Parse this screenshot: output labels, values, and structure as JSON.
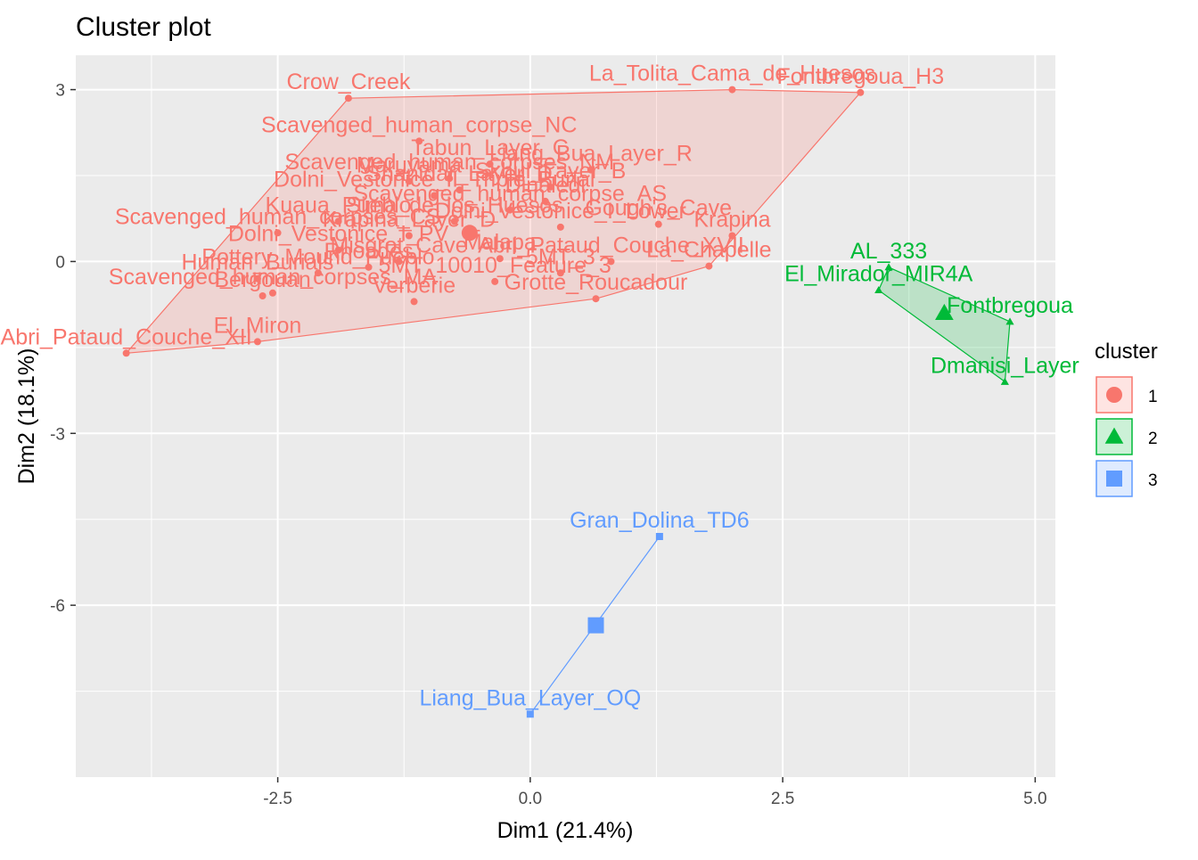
{
  "chart_data": {
    "type": "scatter",
    "title": "Cluster plot",
    "xlabel": "Dim1 (21.4%)",
    "ylabel": "Dim2 (18.1%)",
    "xlim": [
      -4.5,
      5.2
    ],
    "ylim": [
      -9.0,
      3.6
    ],
    "xticks": [
      -2.5,
      0.0,
      2.5,
      5.0
    ],
    "xtick_labels": [
      "-2.5",
      "0.0",
      "2.5",
      "5.0"
    ],
    "yticks": [
      3,
      0,
      -3,
      -6
    ],
    "ytick_labels": [
      "3",
      "0",
      "-3",
      "-6"
    ],
    "grid": true,
    "legend": {
      "title": "cluster",
      "position": "right",
      "entries": [
        {
          "label": "1",
          "shape": "circle",
          "color": "#F8766D"
        },
        {
          "label": "2",
          "shape": "triangle",
          "color": "#00BA38"
        },
        {
          "label": "3",
          "shape": "square",
          "color": "#619CFF"
        }
      ]
    },
    "colors": {
      "panel": "#EBEBEB",
      "grid": "#FFFFFF",
      "cluster1": "#F8766D",
      "cluster2": "#00BA38",
      "cluster3": "#619CFF"
    },
    "series": [
      {
        "name": "1",
        "shape": "circle",
        "color": "#F8766D",
        "fill": "#F8766D",
        "hull": [
          [
            -4.0,
            -1.6
          ],
          [
            -2.7,
            -1.4
          ],
          [
            0.65,
            -0.65
          ],
          [
            1.77,
            -0.08
          ],
          [
            3.27,
            2.95
          ],
          [
            2.0,
            3.0
          ],
          [
            -1.8,
            2.85
          ]
        ],
        "centroid": [
          -0.6,
          0.5
        ],
        "points": [
          {
            "x": -1.8,
            "y": 2.85,
            "label": "Crow_Creek"
          },
          {
            "x": 2.0,
            "y": 3.0,
            "label": "La_Tolita_Cama_de_Huesos"
          },
          {
            "x": 3.27,
            "y": 2.95,
            "label": "Fontbregoua_H3"
          },
          {
            "x": -1.1,
            "y": 2.1,
            "label": "Scavenged_human_corpse_NC"
          },
          {
            "x": -0.4,
            "y": 1.7,
            "label": "Tabun_Layer_C"
          },
          {
            "x": 0.6,
            "y": 1.6,
            "label": "Liang_Bua_Layer_R"
          },
          {
            "x": -0.8,
            "y": 1.45,
            "label": "Scavenged_human_corpses_NM"
          },
          {
            "x": -1.2,
            "y": 1.4,
            "label": "Maruyama"
          },
          {
            "x": -0.7,
            "y": 1.25,
            "label": "Shanidar_Layer_D"
          },
          {
            "x": 0.2,
            "y": 1.3,
            "label": "Skhul_Layer_B"
          },
          {
            "x": -0.95,
            "y": 1.15,
            "label": "Dolni_Vestonice_II_Triple_Burial"
          },
          {
            "x": 0.15,
            "y": 1.05,
            "label": "Dinaledi"
          },
          {
            "x": -0.2,
            "y": 0.9,
            "label": "Scavenged_human_corpse_AS"
          },
          {
            "x": -2.5,
            "y": 0.5,
            "label": "Scavenged_human_corpses_CS"
          },
          {
            "x": -1.9,
            "y": 0.7,
            "label": "Kuaua_Pueblo"
          },
          {
            "x": -0.75,
            "y": 0.7,
            "label": "Sima_de_los_Huesos"
          },
          {
            "x": 1.27,
            "y": 0.65,
            "label": "Gough's_Cave"
          },
          {
            "x": 0.3,
            "y": 0.6,
            "label": "Dolni_Vestonice_I_Lower"
          },
          {
            "x": -1.2,
            "y": 0.45,
            "label": "Krapina_Layer_D"
          },
          {
            "x": 2.0,
            "y": 0.45,
            "label": "Krapina"
          },
          {
            "x": -1.9,
            "y": 0.2,
            "label": "Dolni_Vestonice_I_PV"
          },
          {
            "x": -0.3,
            "y": 0.05,
            "label": "Malapa"
          },
          {
            "x": -1.3,
            "y": 0.0,
            "label": "Misgrot_Cave"
          },
          {
            "x": 0.8,
            "y": 0.0,
            "label": "Abri_Pataud_Couche_XVII"
          },
          {
            "x": -2.7,
            "y": -0.3,
            "label": "Human_Burials"
          },
          {
            "x": -2.1,
            "y": -0.2,
            "label": "Pottery_Mound_Pueblo"
          },
          {
            "x": -1.6,
            "y": -0.1,
            "label": "Rhoades"
          },
          {
            "x": -2.65,
            "y": -0.6,
            "label": "Bergouan"
          },
          {
            "x": -2.55,
            "y": -0.55,
            "label": "Scavenged_human_corpses_MA"
          },
          {
            "x": -0.35,
            "y": -0.35,
            "label": "5MT_10010_Feature_3"
          },
          {
            "x": 0.3,
            "y": -0.2,
            "label": "5MT_3"
          },
          {
            "x": 1.77,
            "y": -0.08,
            "label": "La_Chapelle"
          },
          {
            "x": -1.15,
            "y": -0.7,
            "label": "Verberie"
          },
          {
            "x": 0.65,
            "y": -0.65,
            "label": "Grotte_Roucadour"
          },
          {
            "x": -2.7,
            "y": -1.4,
            "label": "El_Miron"
          },
          {
            "x": -4.0,
            "y": -1.6,
            "label": "Abri_Pataud_Couche_XII"
          }
        ]
      },
      {
        "name": "2",
        "shape": "triangle",
        "color": "#00BA38",
        "fill": "#00BA38",
        "hull": [
          [
            3.45,
            -0.5
          ],
          [
            4.7,
            -2.1
          ],
          [
            4.75,
            -1.05
          ],
          [
            3.55,
            -0.1
          ]
        ],
        "centroid": [
          4.1,
          -0.9
        ],
        "points": [
          {
            "x": 3.55,
            "y": -0.1,
            "label": "AL_333"
          },
          {
            "x": 3.45,
            "y": -0.5,
            "label": "El_Mirador_MIR4A"
          },
          {
            "x": 4.75,
            "y": -1.05,
            "label": "Fontbregoua"
          },
          {
            "x": 4.7,
            "y": -2.1,
            "label": "Dmanisi_Layer"
          }
        ]
      },
      {
        "name": "3",
        "shape": "square",
        "color": "#619CFF",
        "fill": "#619CFF",
        "hull": [
          [
            1.28,
            -4.8
          ],
          [
            0.0,
            -7.9
          ]
        ],
        "centroid": [
          0.65,
          -6.35
        ],
        "points": [
          {
            "x": 1.28,
            "y": -4.8,
            "label": "Gran_Dolina_TD6"
          },
          {
            "x": 0.0,
            "y": -7.9,
            "label": "Liang_Bua_Layer_OQ"
          }
        ]
      }
    ]
  }
}
